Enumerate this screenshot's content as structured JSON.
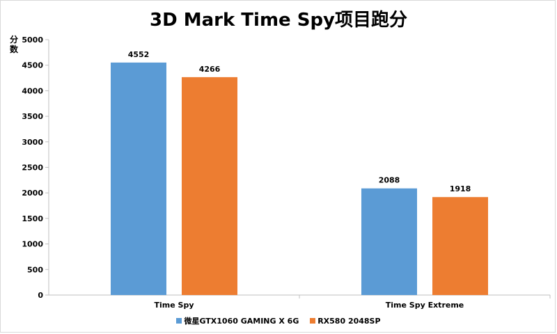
{
  "chart_data": {
    "type": "bar",
    "title": "3D Mark Time Spy项目跑分",
    "xlabel": "",
    "ylabel": "分数",
    "categories": [
      "Time Spy",
      "Time Spy Extreme"
    ],
    "series": [
      {
        "name": "微星GTX1060 GAMING X 6G",
        "values": [
          4552,
          2088
        ],
        "color": "#5b9bd5"
      },
      {
        "name": "RX580 2048SP",
        "values": [
          4266,
          1918
        ],
        "color": "#ed7d31"
      }
    ],
    "ylim": [
      0,
      5000
    ],
    "yticks": [
      0,
      500,
      1000,
      1500,
      2000,
      2500,
      3000,
      3500,
      4000,
      4500,
      5000
    ],
    "grid": false,
    "data_labels": true,
    "legend_position": "bottom"
  }
}
